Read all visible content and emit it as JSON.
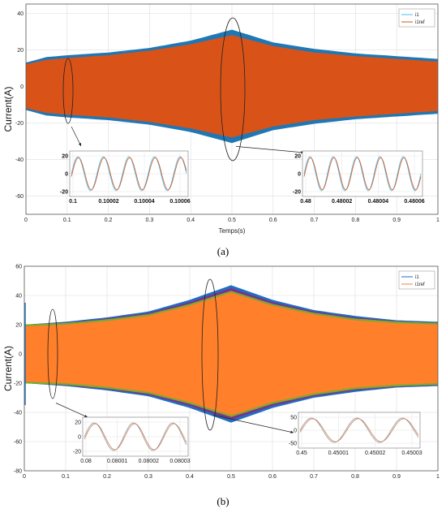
{
  "colors": {
    "axes_bg": "#ffffff",
    "grid": "#dddddd",
    "a_envelope": "#1f77b4",
    "a_fill": "#d95319",
    "b_envelope_outer": "#1f6fc0",
    "b_envelope_inner": "#7e2f8e",
    "b_fill": "#ff7f2a",
    "b_green": "#77ac30",
    "inset_i1": "#4dbeee",
    "inset_ref": "#d95319",
    "inset_b_i1": "#999999",
    "inset_b_ref": "#c88060"
  },
  "chart_data": [
    {
      "id": "a",
      "type": "area",
      "caption": "(a)",
      "xlabel": "Temps(s)",
      "ylabel": "Current(A)",
      "xlim": [
        0,
        1
      ],
      "ylim": [
        -70,
        45
      ],
      "xticks": [
        0,
        0.1,
        0.2,
        0.3,
        0.4,
        0.5,
        0.6,
        0.7,
        0.8,
        0.9,
        1
      ],
      "xtick_labels": [
        "0",
        "0.1",
        "0.2",
        "0.3",
        "0.4",
        "0.5",
        "0.6",
        "0.7",
        "0.8",
        "0.9",
        "1"
      ],
      "yticks": [
        40,
        20,
        0,
        -20,
        -40,
        -60
      ],
      "ytick_labels": [
        "40",
        "20",
        "0",
        "-20",
        "-40",
        "-60"
      ],
      "grid": true,
      "legend": {
        "position": "top-right",
        "entries": [
          "i1",
          "i1ref"
        ]
      },
      "series": [
        {
          "name": "i1",
          "x": [
            0,
            0.05,
            0.1,
            0.2,
            0.3,
            0.4,
            0.5,
            0.6,
            0.7,
            0.8,
            0.9,
            1
          ],
          "envelope": [
            13,
            16,
            17,
            18.5,
            21,
            25,
            31,
            24,
            20.5,
            18,
            16.5,
            15
          ]
        },
        {
          "name": "i1ref",
          "x": [
            0,
            0.05,
            0.1,
            0.2,
            0.3,
            0.4,
            0.5,
            0.6,
            0.7,
            0.8,
            0.9,
            1
          ],
          "envelope": [
            12,
            14.5,
            15.5,
            17,
            19.5,
            23,
            28,
            22,
            18.5,
            16.5,
            15,
            13.5
          ]
        }
      ],
      "insets": [
        {
          "xticks": [
            "0.1",
            "0.10002",
            "0.10004",
            "0.10006"
          ],
          "yticks": [
            "20",
            "0",
            "-20"
          ],
          "xrange": [
            0.1,
            0.10007
          ],
          "amplitude": 17,
          "periods": 4.5
        },
        {
          "xticks": [
            "0.48",
            "0.48002",
            "0.48004",
            "0.48006"
          ],
          "yticks": [
            "20",
            "0",
            "-20"
          ],
          "xrange": [
            0.48,
            0.48007
          ],
          "amplitude": 17,
          "periods": 5
        }
      ]
    },
    {
      "id": "b",
      "type": "area",
      "caption": "(b)",
      "xlabel": "",
      "ylabel": "Current(A)",
      "xlim": [
        0,
        1
      ],
      "ylim": [
        -80,
        60
      ],
      "xticks": [
        0,
        0.1,
        0.2,
        0.3,
        0.4,
        0.5,
        0.6,
        0.7,
        0.8,
        0.9,
        1
      ],
      "xtick_labels": [
        "0",
        "0.1",
        "0.2",
        "0.3",
        "0.4",
        "0.5",
        "0.6",
        "0.7",
        "0.8",
        "0.9",
        "1"
      ],
      "yticks": [
        60,
        40,
        20,
        0,
        -20,
        -40,
        -60,
        -80
      ],
      "ytick_labels": [
        "60",
        "40",
        "20",
        "0",
        "-20",
        "-40",
        "-60",
        "-80"
      ],
      "grid": true,
      "legend": {
        "position": "top-right",
        "entries": [
          "i1",
          "i1ref"
        ]
      },
      "series": [
        {
          "name": "i1",
          "x": [
            0,
            0.05,
            0.1,
            0.2,
            0.3,
            0.4,
            0.5,
            0.6,
            0.7,
            0.8,
            0.9,
            1
          ],
          "envelope": [
            20,
            21,
            22,
            25,
            29,
            37,
            47,
            37,
            30,
            26,
            23,
            22
          ]
        },
        {
          "name": "i1ref",
          "x": [
            0,
            0.05,
            0.1,
            0.2,
            0.3,
            0.4,
            0.5,
            0.6,
            0.7,
            0.8,
            0.9,
            1
          ],
          "envelope": [
            19,
            19.5,
            20,
            22.5,
            26,
            33,
            42,
            33,
            27,
            23,
            21,
            20
          ]
        }
      ],
      "insets": [
        {
          "xticks": [
            "0.08",
            "0.08001",
            "0.08002",
            "0.08003"
          ],
          "yticks": [
            "20",
            "0",
            "-20"
          ],
          "xrange": [
            0.08,
            0.08003
          ],
          "amplitude": 20,
          "periods": 2.6
        },
        {
          "xticks": [
            "0.45",
            "0.45001",
            "0.45002",
            "0.45003"
          ],
          "yticks": [
            "50",
            "0",
            "-50"
          ],
          "xrange": [
            0.45,
            0.45003
          ],
          "amplitude": 40,
          "periods": 2.6
        }
      ]
    }
  ]
}
